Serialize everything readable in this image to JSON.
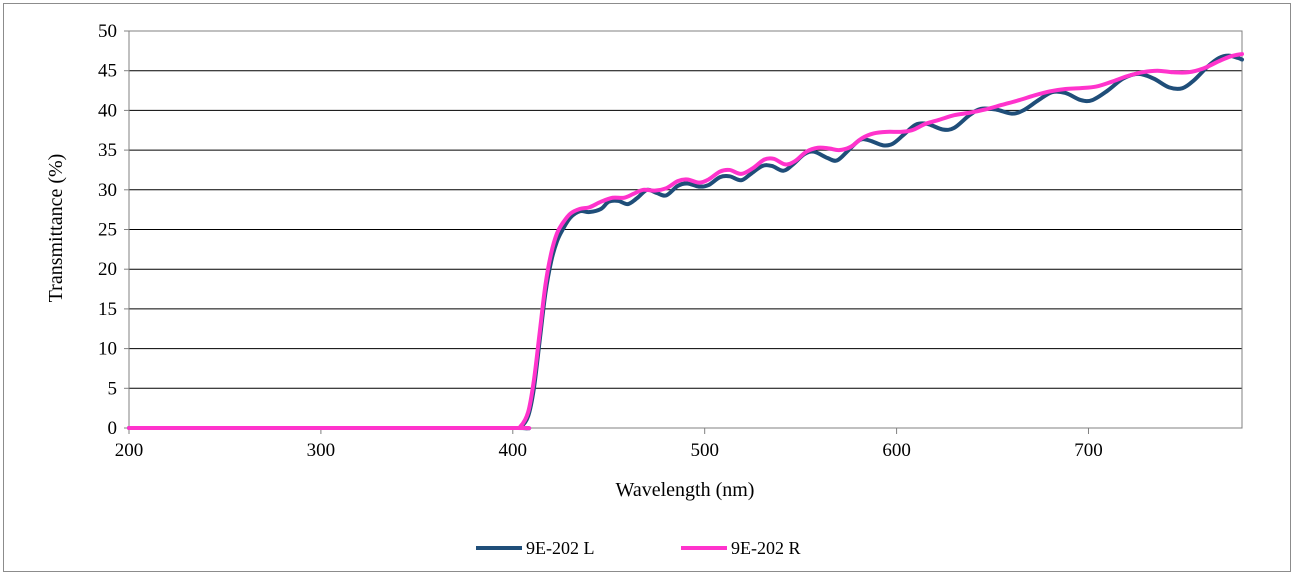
{
  "chart_data": {
    "type": "line",
    "title": "",
    "xlabel": "Wavelength (nm)",
    "ylabel": "Transmittance (%)",
    "xlim": [
      200,
      780
    ],
    "ylim": [
      0,
      50
    ],
    "x_ticks": [
      200,
      300,
      400,
      500,
      600,
      700
    ],
    "y_ticks": [
      0,
      5,
      10,
      15,
      20,
      25,
      30,
      35,
      40,
      45,
      50
    ],
    "grid": "horizontal",
    "legend_position": "bottom",
    "series": [
      {
        "name": "9E-202 L",
        "color": "#1f4e79",
        "points": [
          [
            200,
            0
          ],
          [
            300,
            0
          ],
          [
            400,
            0
          ],
          [
            404,
            0.1
          ],
          [
            408,
            1.5
          ],
          [
            411,
            5
          ],
          [
            414,
            11
          ],
          [
            417,
            17
          ],
          [
            420,
            21
          ],
          [
            423,
            23.5
          ],
          [
            426,
            25
          ],
          [
            430,
            26.5
          ],
          [
            435,
            27.3
          ],
          [
            440,
            27.2
          ],
          [
            446,
            27.6
          ],
          [
            450,
            28.5
          ],
          [
            455,
            28.6
          ],
          [
            460,
            28.2
          ],
          [
            465,
            29
          ],
          [
            470,
            30
          ],
          [
            475,
            29.6
          ],
          [
            480,
            29.3
          ],
          [
            486,
            30.5
          ],
          [
            491,
            30.8
          ],
          [
            497,
            30.4
          ],
          [
            502,
            30.6
          ],
          [
            508,
            31.6
          ],
          [
            513,
            31.7
          ],
          [
            519,
            31.2
          ],
          [
            524,
            32
          ],
          [
            530,
            33
          ],
          [
            535,
            33
          ],
          [
            541,
            32.4
          ],
          [
            546,
            33.2
          ],
          [
            552,
            34.5
          ],
          [
            557,
            34.8
          ],
          [
            564,
            34
          ],
          [
            569,
            33.7
          ],
          [
            575,
            35
          ],
          [
            581,
            36.3
          ],
          [
            586,
            36.2
          ],
          [
            593,
            35.6
          ],
          [
            598,
            35.8
          ],
          [
            604,
            37
          ],
          [
            610,
            38.2
          ],
          [
            616,
            38.3
          ],
          [
            624,
            37.6
          ],
          [
            630,
            37.8
          ],
          [
            638,
            39.4
          ],
          [
            644,
            40.2
          ],
          [
            652,
            40.1
          ],
          [
            660,
            39.6
          ],
          [
            666,
            40
          ],
          [
            674,
            41.3
          ],
          [
            681,
            42.3
          ],
          [
            688,
            42.2
          ],
          [
            696,
            41.3
          ],
          [
            702,
            41.3
          ],
          [
            710,
            42.5
          ],
          [
            718,
            44
          ],
          [
            726,
            44.6
          ],
          [
            734,
            44
          ],
          [
            742,
            42.9
          ],
          [
            749,
            42.8
          ],
          [
            755,
            43.8
          ],
          [
            762,
            45.5
          ],
          [
            768,
            46.6
          ],
          [
            773,
            46.9
          ],
          [
            778,
            46.6
          ],
          [
            780,
            46.4
          ]
        ]
      },
      {
        "name": "9E-202 R",
        "color": "#ff33cc",
        "points": [
          [
            200,
            0
          ],
          [
            300,
            0
          ],
          [
            400,
            0
          ],
          [
            404,
            0.2
          ],
          [
            408,
            2
          ],
          [
            411,
            6
          ],
          [
            414,
            12
          ],
          [
            417,
            18
          ],
          [
            420,
            22
          ],
          [
            423,
            24.5
          ],
          [
            426,
            25.8
          ],
          [
            430,
            27
          ],
          [
            435,
            27.6
          ],
          [
            440,
            27.8
          ],
          [
            446,
            28.5
          ],
          [
            452,
            29
          ],
          [
            458,
            29
          ],
          [
            463,
            29.5
          ],
          [
            468,
            30
          ],
          [
            474,
            29.9
          ],
          [
            480,
            30.2
          ],
          [
            486,
            31.1
          ],
          [
            491,
            31.3
          ],
          [
            497,
            30.9
          ],
          [
            502,
            31.3
          ],
          [
            508,
            32.3
          ],
          [
            513,
            32.5
          ],
          [
            519,
            32
          ],
          [
            525,
            32.7
          ],
          [
            531,
            33.8
          ],
          [
            536,
            33.9
          ],
          [
            542,
            33.2
          ],
          [
            547,
            33.6
          ],
          [
            553,
            34.8
          ],
          [
            559,
            35.3
          ],
          [
            565,
            35.2
          ],
          [
            570,
            35
          ],
          [
            576,
            35.4
          ],
          [
            582,
            36.5
          ],
          [
            588,
            37.1
          ],
          [
            595,
            37.3
          ],
          [
            602,
            37.3
          ],
          [
            608,
            37.5
          ],
          [
            615,
            38.3
          ],
          [
            622,
            38.8
          ],
          [
            630,
            39.4
          ],
          [
            638,
            39.7
          ],
          [
            646,
            40.1
          ],
          [
            655,
            40.7
          ],
          [
            664,
            41.3
          ],
          [
            672,
            41.9
          ],
          [
            680,
            42.4
          ],
          [
            688,
            42.7
          ],
          [
            696,
            42.8
          ],
          [
            704,
            43
          ],
          [
            712,
            43.6
          ],
          [
            720,
            44.3
          ],
          [
            728,
            44.8
          ],
          [
            736,
            45
          ],
          [
            744,
            44.8
          ],
          [
            752,
            44.8
          ],
          [
            760,
            45.3
          ],
          [
            768,
            46.2
          ],
          [
            774,
            46.8
          ],
          [
            780,
            47.1
          ]
        ]
      }
    ]
  }
}
